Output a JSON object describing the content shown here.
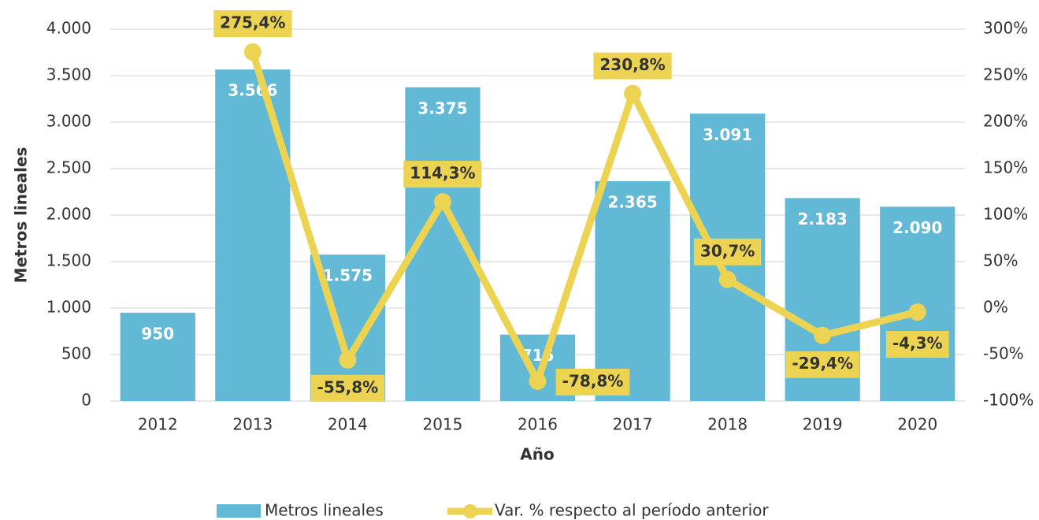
{
  "chart_data": {
    "type": "bar",
    "categories": [
      "2012",
      "2013",
      "2014",
      "2015",
      "2016",
      "2017",
      "2018",
      "2019",
      "2020"
    ],
    "series": [
      {
        "name": "Metros lineales",
        "type": "bar",
        "color": "#62b9d5",
        "values": [
          950,
          3566,
          1575,
          3375,
          715,
          2365,
          3091,
          2183,
          2090
        ],
        "value_labels": [
          "950",
          "3.566",
          "1.575",
          "3.375",
          "715",
          "2.365",
          "3.091",
          "2.183",
          "2.090"
        ]
      },
      {
        "name": "Var. % respecto al período anterior",
        "type": "line",
        "axis": "y2",
        "color": "#ecd452",
        "values": [
          null,
          275.4,
          -55.8,
          114.3,
          -78.8,
          230.8,
          30.7,
          -29.4,
          -4.3
        ],
        "value_labels": [
          null,
          "275,4%",
          "-55,8%",
          "114,3%",
          "-78,8%",
          "230,8%",
          "30,7%",
          "-29,4%",
          "-4,3%"
        ]
      }
    ],
    "x_label": "Año",
    "y_label": "Metros lineales",
    "ylim": [
      0,
      4000
    ],
    "yticks": [
      0,
      500,
      {
        "value": 1000,
        "label": "1.000"
      },
      {
        "value": 1500,
        "label": "1.500"
      },
      {
        "value": 2000,
        "label": "2.000"
      },
      {
        "value": 2500,
        "label": "2.500"
      },
      {
        "value": 3000,
        "label": "3.000"
      },
      {
        "value": 3500,
        "label": "3.500"
      },
      {
        "value": 4000,
        "label": "4.000"
      }
    ],
    "y2lim": [
      -100,
      300
    ],
    "y2ticks": [
      {
        "value": -100,
        "label": "-100%"
      },
      {
        "value": -50,
        "label": "-50%"
      },
      {
        "value": 0,
        "label": "0%"
      },
      {
        "value": 50,
        "label": "50%"
      },
      {
        "value": 100,
        "label": "100%"
      },
      {
        "value": 150,
        "label": "150%"
      },
      {
        "value": 200,
        "label": "200%"
      },
      {
        "value": 250,
        "label": "250%"
      },
      {
        "value": 300,
        "label": "300%"
      }
    ],
    "grid": true,
    "legend": "bottom"
  }
}
